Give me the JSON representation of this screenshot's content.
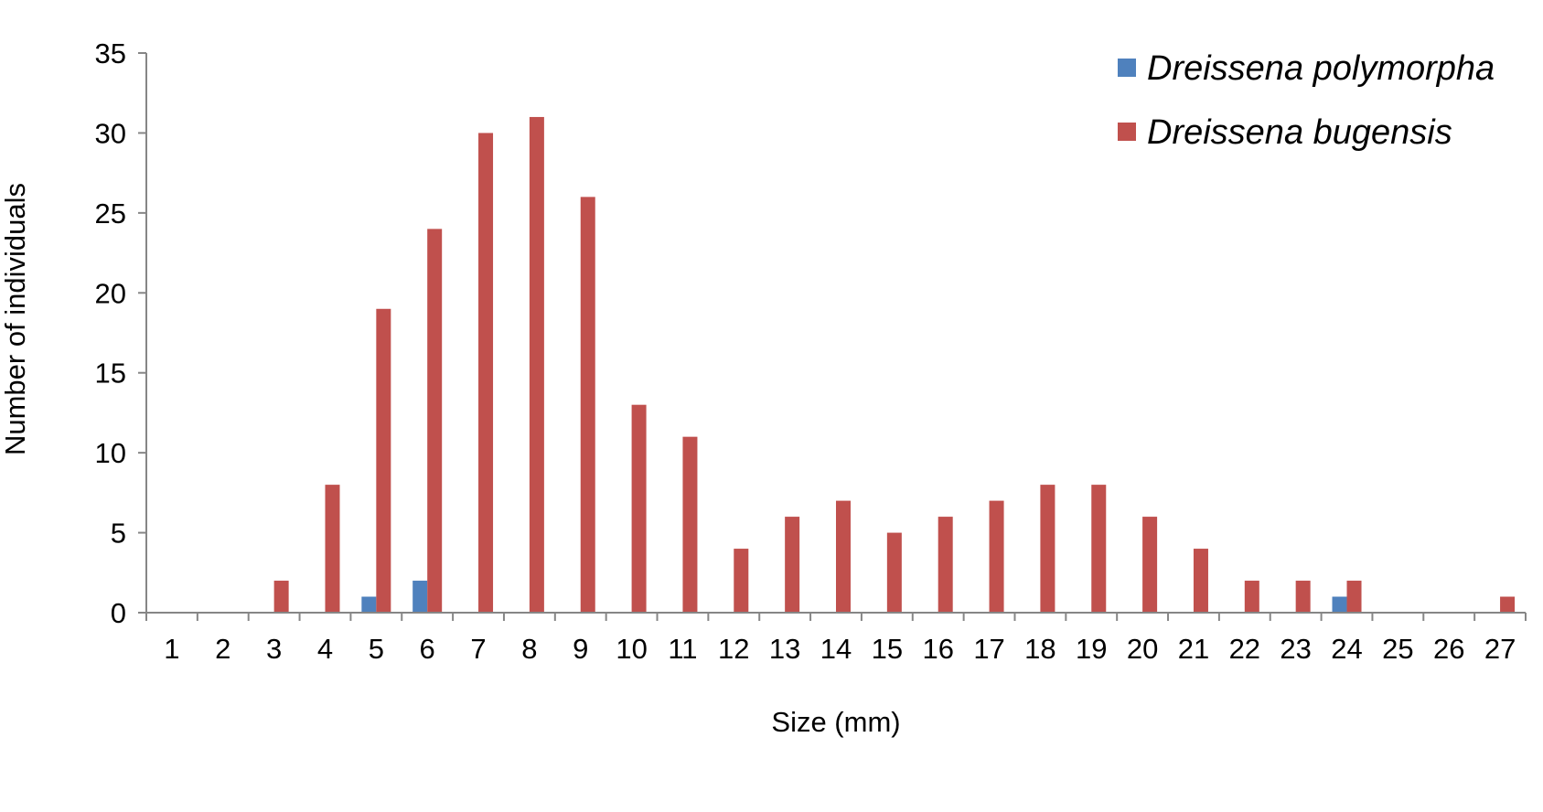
{
  "chart_data": {
    "type": "bar",
    "xlabel": "Size (mm)",
    "ylabel": "Number of individuals",
    "ylim": [
      0,
      35
    ],
    "yticks": [
      0,
      5,
      10,
      15,
      20,
      25,
      30,
      35
    ],
    "grid": false,
    "legend_position": "top-right",
    "categories": [
      "1",
      "2",
      "3",
      "4",
      "5",
      "6",
      "7",
      "8",
      "9",
      "10",
      "11",
      "12",
      "13",
      "14",
      "15",
      "16",
      "17",
      "18",
      "19",
      "20",
      "21",
      "22",
      "23",
      "24",
      "25",
      "26",
      "27"
    ],
    "series": [
      {
        "name": "Dreissena polymorpha",
        "color": "#4f81bd",
        "values": [
          0,
          0,
          0,
          0,
          1,
          2,
          0,
          0,
          0,
          0,
          0,
          0,
          0,
          0,
          0,
          0,
          0,
          0,
          0,
          0,
          0,
          0,
          0,
          1,
          0,
          0,
          0
        ]
      },
      {
        "name": "Dreissena bugensis",
        "color": "#c0504d",
        "values": [
          0,
          0,
          2,
          8,
          19,
          24,
          30,
          31,
          26,
          13,
          11,
          4,
          6,
          7,
          5,
          6,
          7,
          8,
          8,
          6,
          4,
          2,
          2,
          2,
          0,
          0,
          1
        ]
      }
    ]
  }
}
